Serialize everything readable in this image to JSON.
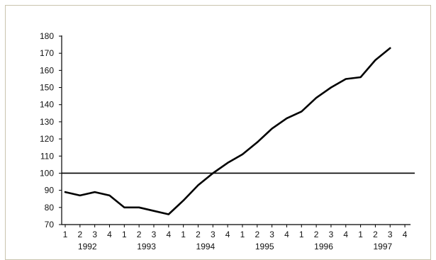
{
  "chart_data": {
    "type": "line",
    "title": "",
    "xlabel": "",
    "ylabel": "",
    "ylim": [
      70,
      180
    ],
    "yticks": [
      70,
      80,
      90,
      100,
      110,
      120,
      130,
      140,
      150,
      160,
      170,
      180
    ],
    "quarter_labels": [
      "1",
      "2",
      "3",
      "4",
      "1",
      "2",
      "3",
      "4",
      "1",
      "2",
      "3",
      "4",
      "1",
      "2",
      "3",
      "4",
      "1",
      "2",
      "3",
      "4",
      "1",
      "2",
      "3",
      "4"
    ],
    "year_labels": [
      "1992",
      "1993",
      "1994",
      "1995",
      "1996",
      "1997"
    ],
    "reference_line": 100,
    "grid": false,
    "legend": "none",
    "line_color": "#000000",
    "series": [
      {
        "values": [
          89,
          87,
          89,
          87,
          80,
          80,
          78,
          76,
          84,
          93,
          100,
          106,
          111,
          118,
          126,
          132,
          136,
          144,
          150,
          155,
          156,
          166,
          173
        ]
      }
    ]
  }
}
